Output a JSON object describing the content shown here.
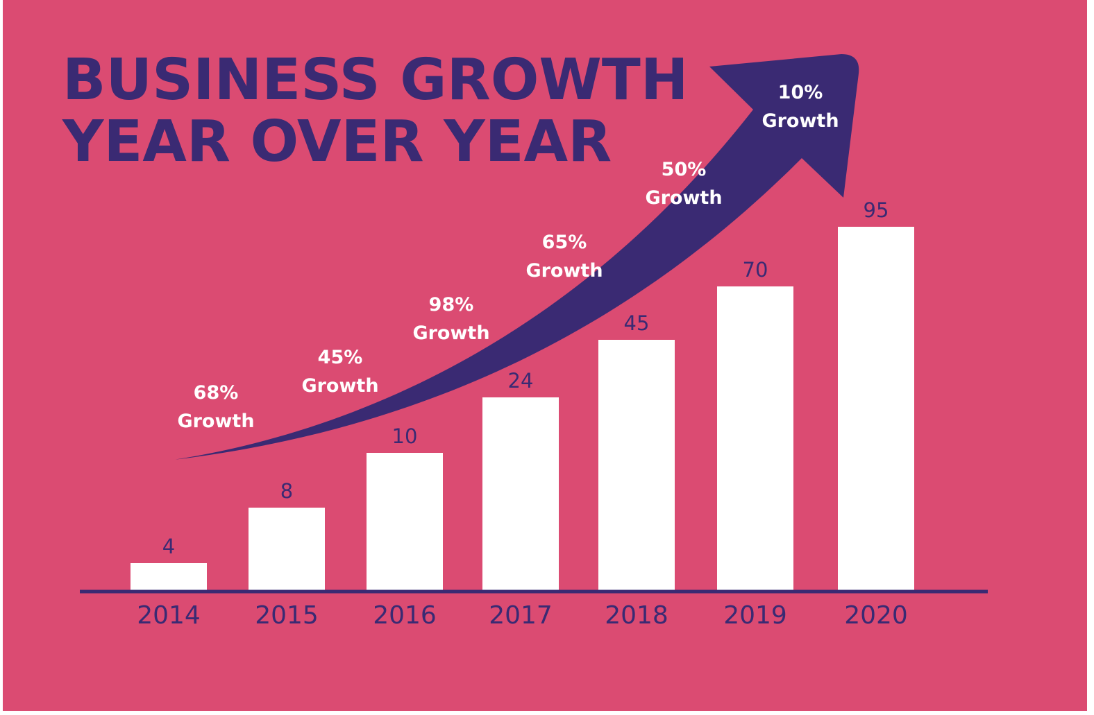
{
  "chart_data": {
    "type": "bar",
    "title_lines": [
      "BUSINESS GROWTH",
      "YEAR OVER YEAR"
    ],
    "categories": [
      "2014",
      "2015",
      "2016",
      "2017",
      "2018",
      "2019",
      "2020"
    ],
    "values": [
      4,
      8,
      10,
      24,
      45,
      70,
      95
    ],
    "value_labels": [
      "4",
      "8",
      "10",
      "24",
      "45",
      "70",
      "95"
    ],
    "growth_annotations": [
      {
        "pct": "68%",
        "label": "Growth"
      },
      {
        "pct": "45%",
        "label": "Growth"
      },
      {
        "pct": "98%",
        "label": "Growth"
      },
      {
        "pct": "65%",
        "label": "Growth"
      },
      {
        "pct": "50%",
        "label": "Growth"
      },
      {
        "pct": "10%",
        "label": "Growth"
      }
    ],
    "xlabel": "",
    "ylabel": "",
    "grid": false,
    "colors": {
      "background": "#db4b72",
      "bars": "#ffffff",
      "arrow": "#3a2a73",
      "text": "#3a2a73",
      "annotation_text": "#ffffff"
    }
  }
}
